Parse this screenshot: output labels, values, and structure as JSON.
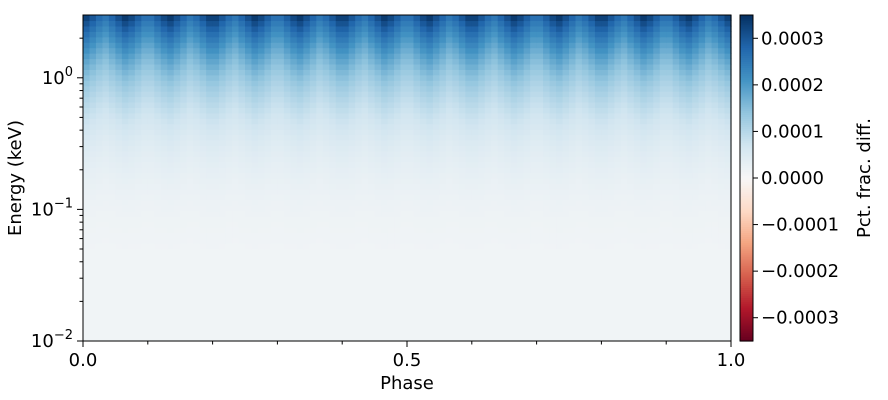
{
  "chart_data": {
    "type": "heatmap",
    "xlabel": "Phase",
    "ylabel": "Energy (keV)",
    "colorbar_label": "Pct. frac. diff.",
    "colormap": "RdBu",
    "x_range": [
      0.0,
      1.0
    ],
    "y_range": [
      0.01,
      3.0
    ],
    "y_scale": "log",
    "color_range": [
      -0.00035,
      0.00035
    ],
    "x_major_ticks": [
      {
        "value": 0.0,
        "label": "0.0"
      },
      {
        "value": 0.5,
        "label": "0.5"
      },
      {
        "value": 1.0,
        "label": "1.0"
      }
    ],
    "x_minor_ticks": [
      0.1,
      0.2,
      0.3,
      0.4,
      0.6,
      0.7,
      0.8,
      0.9
    ],
    "y_major_ticks": [
      {
        "value": 0.01,
        "base": "10",
        "exp": "−2"
      },
      {
        "value": 0.1,
        "base": "10",
        "exp": "−1"
      },
      {
        "value": 1.0,
        "base": "10",
        "exp": "0"
      }
    ],
    "colorbar_ticks": [
      {
        "value": 0.0003,
        "label": "0.0003"
      },
      {
        "value": 0.0002,
        "label": "0.0002"
      },
      {
        "value": 0.0001,
        "label": "0.0001"
      },
      {
        "value": 0.0,
        "label": "0.0000"
      },
      {
        "value": -0.0001,
        "label": "−0.0001"
      },
      {
        "value": -0.0002,
        "label": "−0.0002"
      },
      {
        "value": -0.0003,
        "label": "−0.0003"
      }
    ],
    "pattern": {
      "n_phase_bins": 100,
      "n_energy_bins": 60,
      "periods_across_phase": 15,
      "max_value": 0.00034,
      "floor_value": 1.2e-05,
      "note_values": "values are positive everywhere; strongest at highest energies, periodic in phase"
    }
  }
}
